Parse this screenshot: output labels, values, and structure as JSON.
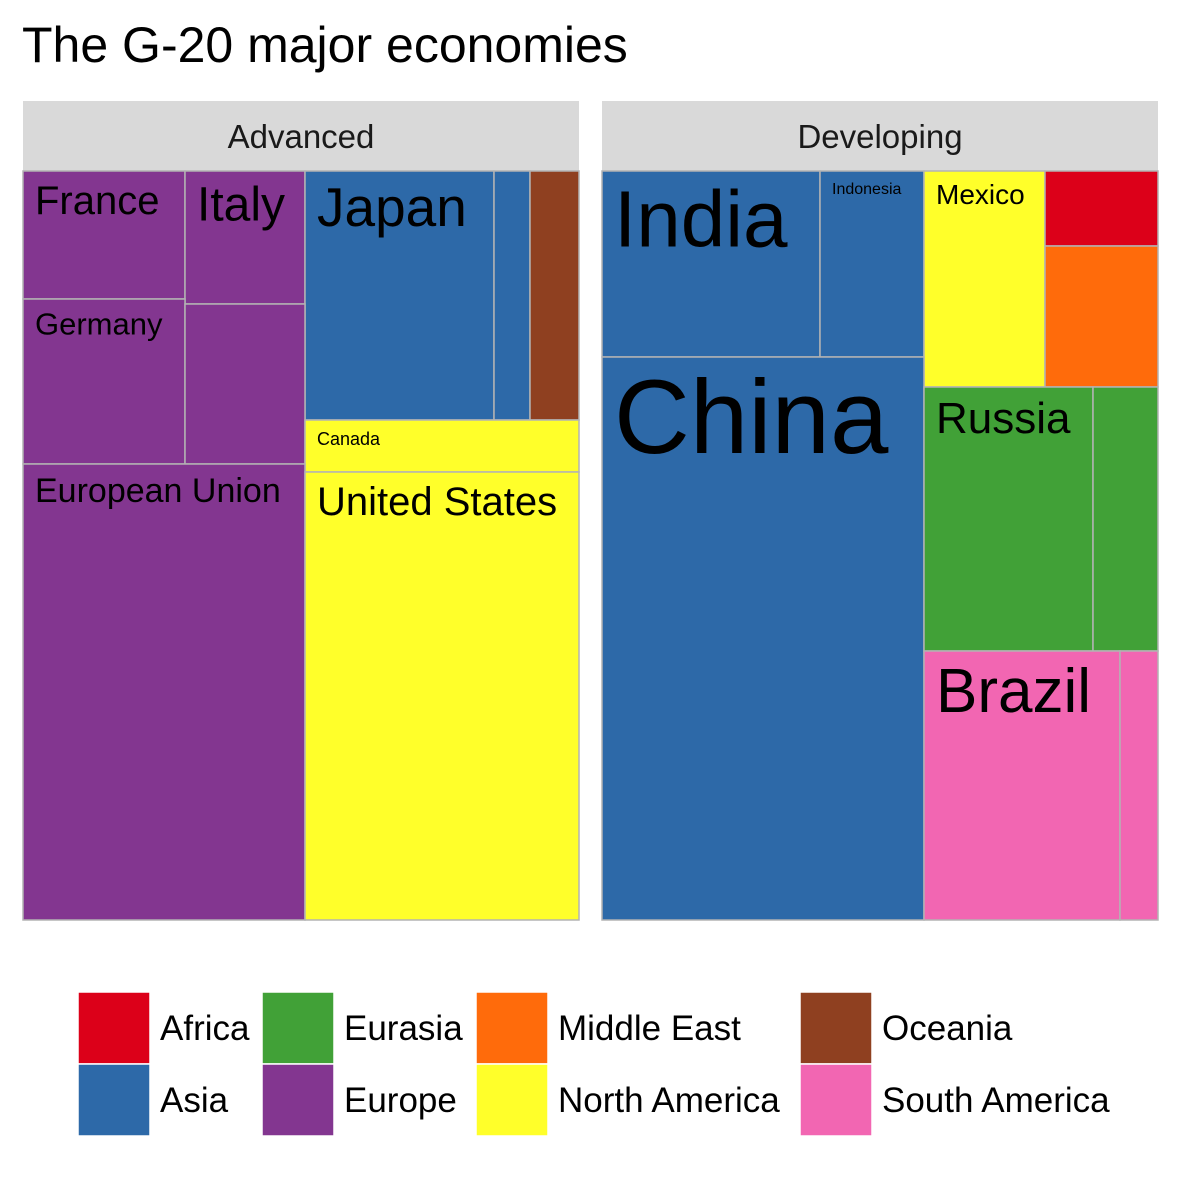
{
  "chart_data": {
    "type": "treemap",
    "title": "The G-20 major economies",
    "facets": [
      {
        "name": "Advanced",
        "tiles": [
          {
            "label": "France",
            "region": "Europe"
          },
          {
            "label": "Italy",
            "region": "Europe"
          },
          {
            "label": "Japan",
            "region": "Asia"
          },
          {
            "label": "",
            "region": "Asia"
          },
          {
            "label": "",
            "region": "Oceania"
          },
          {
            "label": "Germany",
            "region": "Europe"
          },
          {
            "label": "",
            "region": "Europe"
          },
          {
            "label": "Canada",
            "region": "North America"
          },
          {
            "label": "European Union",
            "region": "Europe"
          },
          {
            "label": "United States",
            "region": "North America"
          }
        ]
      },
      {
        "name": "Developing",
        "tiles": [
          {
            "label": "India",
            "region": "Asia"
          },
          {
            "label": "Indonesia",
            "region": "Asia"
          },
          {
            "label": "Mexico",
            "region": "North America"
          },
          {
            "label": "",
            "region": "Africa"
          },
          {
            "label": "",
            "region": "Middle East"
          },
          {
            "label": "China",
            "region": "Asia"
          },
          {
            "label": "Russia",
            "region": "Eurasia"
          },
          {
            "label": "",
            "region": "Eurasia"
          },
          {
            "label": "Brazil",
            "region": "South America"
          },
          {
            "label": "",
            "region": "South America"
          }
        ]
      }
    ],
    "legend": [
      {
        "label": "Africa",
        "color": "#DC0019"
      },
      {
        "label": "Asia",
        "color": "#2D69A8"
      },
      {
        "label": "Eurasia",
        "color": "#41A137"
      },
      {
        "label": "Europe",
        "color": "#833690"
      },
      {
        "label": "Middle East",
        "color": "#FF6B0B"
      },
      {
        "label": "North America",
        "color": "#FFFF2A"
      },
      {
        "label": "Oceania",
        "color": "#8F4020"
      },
      {
        "label": "South America",
        "color": "#F266B2"
      }
    ],
    "legend_position": "bottom"
  }
}
